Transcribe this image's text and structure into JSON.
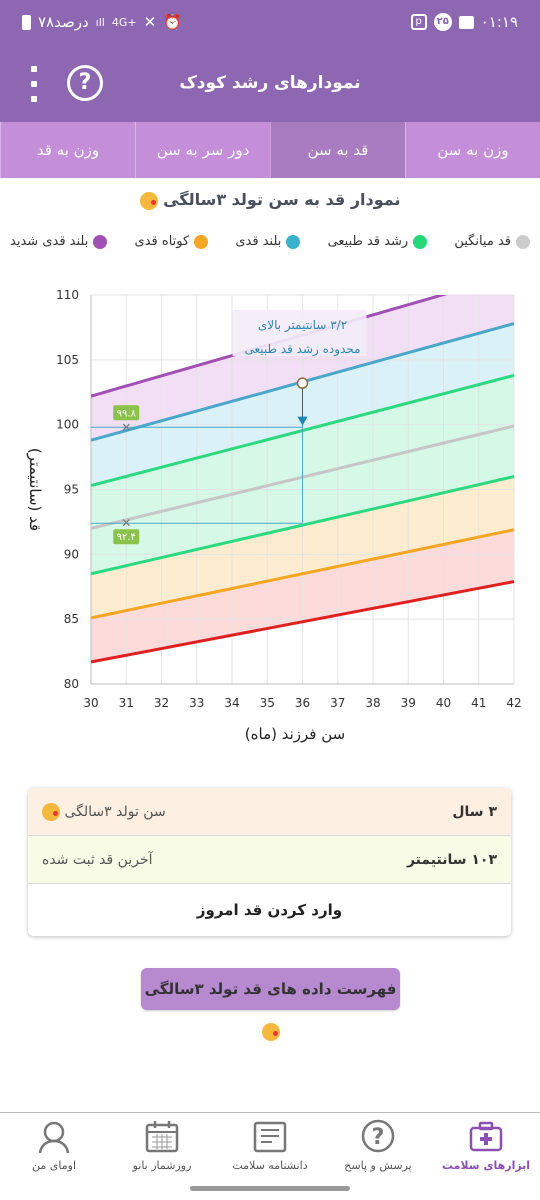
{
  "status_bar": {
    "time": "۰۱:۱۹",
    "notification_count": "۲۵",
    "battery": "۷۸درصد",
    "network": "4G+"
  },
  "app_bar": {
    "title": "نمودارهای رشد کودک",
    "help_icon": "help-circle-icon",
    "menu_icon": "kebab-menu-icon"
  },
  "tabs": [
    {
      "label": "وزن به سن",
      "active": false
    },
    {
      "label": "قد به سن",
      "active": true
    },
    {
      "label": "دور سر به سن",
      "active": false
    },
    {
      "label": "وزن به قد",
      "active": false
    }
  ],
  "chart_title": "نمودار قد به سن تولد ۳سالگی",
  "legend": [
    {
      "label": "بلند قدی شدید",
      "color": "#a24fb5"
    },
    {
      "label": "کوتاه قدی",
      "color": "#f5a623"
    },
    {
      "label": "بلند قدی",
      "color": "#3bb0cc"
    },
    {
      "label": "رشد قد طبیعی",
      "color": "#27d87a"
    },
    {
      "label": "قد میانگین",
      "color": "#cccccc"
    }
  ],
  "chart_data": {
    "type": "line",
    "xlabel": "سن فرزند (ماه)",
    "ylabel": "قد (سانتیمتر)",
    "xlim": [
      30,
      42
    ],
    "ylim": [
      80,
      110
    ],
    "xticks": [
      30,
      31,
      32,
      33,
      34,
      35,
      36,
      37,
      38,
      39,
      40,
      41,
      42
    ],
    "yticks": [
      80,
      85,
      90,
      95,
      100,
      105,
      110
    ],
    "grid": true,
    "x": [
      30,
      42
    ],
    "series": [
      {
        "name": "بلند قدی شدید",
        "color": "#a24fb5",
        "values": [
          102.2,
          111.6
        ]
      },
      {
        "name": "بلند قدی",
        "color": "#4aa7c9",
        "values": [
          98.8,
          107.8
        ]
      },
      {
        "name": "رشد قد طبیعی",
        "color": "#2bd980",
        "values": [
          95.3,
          103.8
        ]
      },
      {
        "name": "قد میانگین",
        "color": "#c6c6c6",
        "values": [
          92.0,
          99.9
        ]
      },
      {
        "name": "رشد قد طبیعی",
        "color": "#2bd980",
        "values": [
          88.5,
          96.0
        ]
      },
      {
        "name": "کوتاه قدی",
        "color": "#f5a623",
        "values": [
          85.1,
          91.9
        ]
      },
      {
        "name": "کوتاه قدی شدید",
        "color": "#e02020",
        "values": [
          81.7,
          87.9
        ]
      }
    ],
    "band_fills": [
      "#f0d8f3",
      "#d5eef7",
      "#cff7e2",
      "#cff7e2",
      "#fde9c8",
      "#fdd5d5"
    ],
    "markers": [
      {
        "x": 31,
        "y": 99.8,
        "label": "۹۹.۸",
        "color": "#8bc34a"
      },
      {
        "x": 31,
        "y": 92.4,
        "label": "۹۲.۴",
        "color": "#8bc34a"
      }
    ],
    "measurement": {
      "x": 36,
      "y": 103.2
    },
    "annotation": {
      "line1": "۳/۲ سانتیمتر بالای",
      "line2": "محدوده رشد قد طبیعی",
      "arrow_from": 103.2,
      "arrow_to": 100.0
    }
  },
  "info_card": {
    "age_label": "سن تولد ۳سالگی",
    "age_value": "۳ سال",
    "height_label": "آخرین قد ثبت شده",
    "height_value": "۱۰۳ سانتیمتر",
    "enter_button": "وارد کردن قد امروز"
  },
  "list_button": "فهرست داده های قد تولد ۳سالگی",
  "bottom_nav": [
    {
      "label": "ابزارهای سلامت",
      "icon": "first-aid-kit-icon",
      "active": true
    },
    {
      "label": "پرسش و پاسخ",
      "icon": "question-bubble-icon",
      "active": false
    },
    {
      "label": "دانشنامه سلامت",
      "icon": "encyclopedia-icon",
      "active": false
    },
    {
      "label": "روزشمار بانو",
      "icon": "calendar-icon",
      "active": false
    },
    {
      "label": "اومای من",
      "icon": "profile-icon",
      "active": false
    }
  ]
}
